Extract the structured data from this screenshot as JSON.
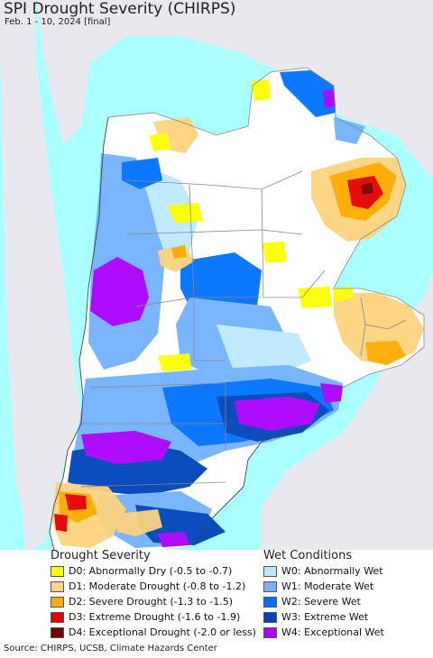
{
  "header": {
    "title": "SPI Drought Severity (CHIRPS)",
    "subtitle": "Feb. 1 - 10, 2024 [final]"
  },
  "legend": {
    "drought_title": "Drought Severity",
    "wet_title": "Wet Conditions",
    "drought_items": [
      {
        "label": "D0: Abnormally Dry (-0.5 to -0.7)",
        "color": "#ffff00"
      },
      {
        "label": "D1: Moderate Drought (-0.8 to -1.2)",
        "color": "#fcd37f"
      },
      {
        "label": "D2: Severe Drought (-1.3 to -1.5)",
        "color": "#ffaa00"
      },
      {
        "label": "D3: Extreme Drought (-1.6 to -1.9)",
        "color": "#e60000"
      },
      {
        "label": "D4: Exceptional Drought (-2.0 or less)",
        "color": "#730000"
      }
    ],
    "wet_items": [
      {
        "label": "W0: Abnormally Wet",
        "color": "#bee8ff"
      },
      {
        "label": "W1: Moderate Wet",
        "color": "#73b2ff"
      },
      {
        "label": "W2: Severe Wet",
        "color": "#0070ff"
      },
      {
        "label": "W3: Extreme Wet",
        "color": "#0044bb"
      },
      {
        "label": "W4: Exceptional Wet",
        "color": "#aa00ff"
      }
    ]
  },
  "footer": {
    "source": "Source: CHIRPS, UCSB, Climate Hazards Center"
  },
  "map_colors": {
    "ocean": "#aaffff",
    "neighbor_land": "#e8e8ee",
    "no_anomaly_land": "#ffffff",
    "border": "#888888"
  }
}
